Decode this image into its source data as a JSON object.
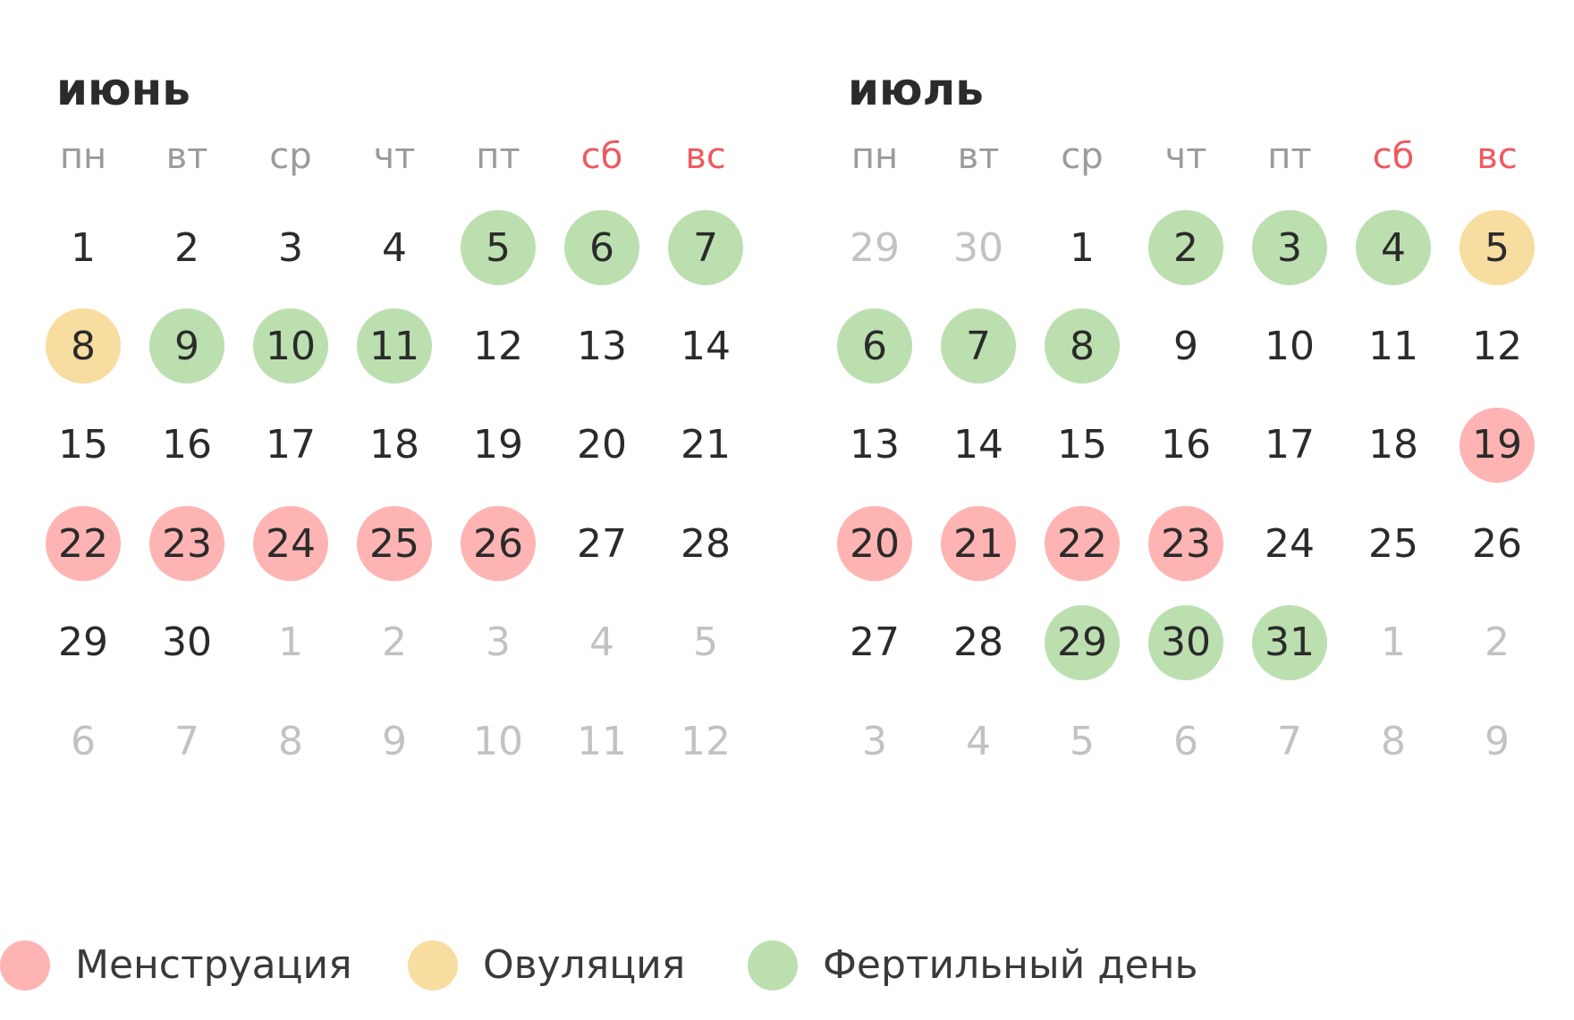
{
  "months": [
    {
      "title": "июнь",
      "weekdays": [
        {
          "label": "пн",
          "weekend": false
        },
        {
          "label": "вт",
          "weekend": false
        },
        {
          "label": "ср",
          "weekend": false
        },
        {
          "label": "чт",
          "weekend": false
        },
        {
          "label": "пт",
          "weekend": false
        },
        {
          "label": "сб",
          "weekend": true
        },
        {
          "label": "вс",
          "weekend": true
        }
      ],
      "weeks": [
        [
          {
            "d": "1"
          },
          {
            "d": "2"
          },
          {
            "d": "3"
          },
          {
            "d": "4"
          },
          {
            "d": "5",
            "type": "fertile"
          },
          {
            "d": "6",
            "type": "fertile"
          },
          {
            "d": "7",
            "type": "fertile"
          }
        ],
        [
          {
            "d": "8",
            "type": "ovulation"
          },
          {
            "d": "9",
            "type": "fertile"
          },
          {
            "d": "10",
            "type": "fertile"
          },
          {
            "d": "11",
            "type": "fertile"
          },
          {
            "d": "12"
          },
          {
            "d": "13"
          },
          {
            "d": "14"
          }
        ],
        [
          {
            "d": "15"
          },
          {
            "d": "16"
          },
          {
            "d": "17"
          },
          {
            "d": "18"
          },
          {
            "d": "19"
          },
          {
            "d": "20"
          },
          {
            "d": "21"
          }
        ],
        [
          {
            "d": "22",
            "type": "menstruation"
          },
          {
            "d": "23",
            "type": "menstruation"
          },
          {
            "d": "24",
            "type": "menstruation"
          },
          {
            "d": "25",
            "type": "menstruation"
          },
          {
            "d": "26",
            "type": "menstruation"
          },
          {
            "d": "27"
          },
          {
            "d": "28"
          }
        ],
        [
          {
            "d": "29"
          },
          {
            "d": "30"
          },
          {
            "d": "1",
            "outside": true
          },
          {
            "d": "2",
            "outside": true
          },
          {
            "d": "3",
            "outside": true
          },
          {
            "d": "4",
            "outside": true
          },
          {
            "d": "5",
            "outside": true
          }
        ],
        [
          {
            "d": "6",
            "outside": true
          },
          {
            "d": "7",
            "outside": true
          },
          {
            "d": "8",
            "outside": true
          },
          {
            "d": "9",
            "outside": true
          },
          {
            "d": "10",
            "outside": true
          },
          {
            "d": "11",
            "outside": true
          },
          {
            "d": "12",
            "outside": true
          }
        ]
      ]
    },
    {
      "title": "июль",
      "weekdays": [
        {
          "label": "пн",
          "weekend": false
        },
        {
          "label": "вт",
          "weekend": false
        },
        {
          "label": "ср",
          "weekend": false
        },
        {
          "label": "чт",
          "weekend": false
        },
        {
          "label": "пт",
          "weekend": false
        },
        {
          "label": "сб",
          "weekend": true
        },
        {
          "label": "вс",
          "weekend": true
        }
      ],
      "weeks": [
        [
          {
            "d": "29",
            "outside": true
          },
          {
            "d": "30",
            "outside": true
          },
          {
            "d": "1"
          },
          {
            "d": "2",
            "type": "fertile"
          },
          {
            "d": "3",
            "type": "fertile"
          },
          {
            "d": "4",
            "type": "fertile"
          },
          {
            "d": "5",
            "type": "ovulation"
          }
        ],
        [
          {
            "d": "6",
            "type": "fertile"
          },
          {
            "d": "7",
            "type": "fertile"
          },
          {
            "d": "8",
            "type": "fertile"
          },
          {
            "d": "9"
          },
          {
            "d": "10"
          },
          {
            "d": "11"
          },
          {
            "d": "12"
          }
        ],
        [
          {
            "d": "13"
          },
          {
            "d": "14"
          },
          {
            "d": "15"
          },
          {
            "d": "16"
          },
          {
            "d": "17"
          },
          {
            "d": "18"
          },
          {
            "d": "19",
            "type": "menstruation"
          }
        ],
        [
          {
            "d": "20",
            "type": "menstruation"
          },
          {
            "d": "21",
            "type": "menstruation"
          },
          {
            "d": "22",
            "type": "menstruation"
          },
          {
            "d": "23",
            "type": "menstruation"
          },
          {
            "d": "24"
          },
          {
            "d": "25"
          },
          {
            "d": "26"
          }
        ],
        [
          {
            "d": "27"
          },
          {
            "d": "28"
          },
          {
            "d": "29",
            "type": "fertile"
          },
          {
            "d": "30",
            "type": "fertile"
          },
          {
            "d": "31",
            "type": "fertile"
          },
          {
            "d": "1",
            "outside": true
          },
          {
            "d": "2",
            "outside": true
          }
        ],
        [
          {
            "d": "3",
            "outside": true
          },
          {
            "d": "4",
            "outside": true
          },
          {
            "d": "5",
            "outside": true
          },
          {
            "d": "6",
            "outside": true
          },
          {
            "d": "7",
            "outside": true
          },
          {
            "d": "8",
            "outside": true
          },
          {
            "d": "9",
            "outside": true
          }
        ]
      ]
    }
  ],
  "legend": [
    {
      "key": "menstruation",
      "label": "Менструация",
      "color": "#ffb4b4"
    },
    {
      "key": "ovulation",
      "label": "Овуляция",
      "color": "#f8dda0"
    },
    {
      "key": "fertile",
      "label": "Фертильный день",
      "color": "#bcdfb0"
    }
  ],
  "colors": {
    "weekend": "#ee5a5f",
    "text": "#2b2b2b",
    "muted": "#c2c2c2",
    "weekday": "#9b9b9b"
  }
}
